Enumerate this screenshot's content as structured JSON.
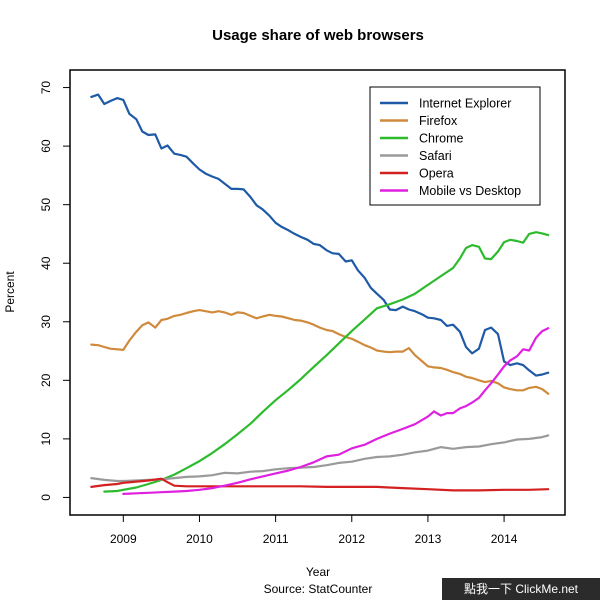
{
  "chart_data": {
    "type": "line",
    "title": "Usage share of web browsers",
    "xlabel": "Year",
    "ylabel": "Percent",
    "source_note": "Source: StatCounter",
    "xlim": [
      2008.3,
      2014.8
    ],
    "ylim": [
      -3,
      73
    ],
    "xticks": [
      2009,
      2010,
      2011,
      2012,
      2013,
      2014
    ],
    "yticks": [
      0,
      10,
      20,
      30,
      40,
      50,
      60,
      70
    ],
    "grid": false,
    "legend_position": "top-right",
    "series": [
      {
        "name": "Internet Explorer",
        "color": "#1f5aa6",
        "x": [
          2008.58,
          2008.67,
          2008.75,
          2008.83,
          2008.92,
          2009.0,
          2009.08,
          2009.17,
          2009.25,
          2009.33,
          2009.42,
          2009.5,
          2009.58,
          2009.67,
          2009.75,
          2009.83,
          2009.92,
          2010.0,
          2010.08,
          2010.17,
          2010.25,
          2010.33,
          2010.42,
          2010.5,
          2010.58,
          2010.67,
          2010.75,
          2010.83,
          2010.92,
          2011.0,
          2011.08,
          2011.17,
          2011.25,
          2011.33,
          2011.42,
          2011.5,
          2011.58,
          2011.67,
          2011.75,
          2011.83,
          2011.92,
          2012.0,
          2012.08,
          2012.17,
          2012.25,
          2012.33,
          2012.42,
          2012.5,
          2012.58,
          2012.67,
          2012.75,
          2012.83,
          2012.92,
          2013.0,
          2013.08,
          2013.17,
          2013.25,
          2013.33,
          2013.42,
          2013.5,
          2013.58,
          2013.67,
          2013.75,
          2013.83,
          2013.92,
          2014.0,
          2014.08,
          2014.17,
          2014.25,
          2014.33,
          2014.42,
          2014.5,
          2014.58
        ],
        "y": [
          68.4,
          68.8,
          67.2,
          67.7,
          68.2,
          67.9,
          65.5,
          64.6,
          62.5,
          61.9,
          62.0,
          59.6,
          60.1,
          58.7,
          58.5,
          58.2,
          57.0,
          56.0,
          55.3,
          54.8,
          54.4,
          53.6,
          52.7,
          52.7,
          52.6,
          51.3,
          49.9,
          49.2,
          48.1,
          46.9,
          46.2,
          45.6,
          45.0,
          44.5,
          44.0,
          43.3,
          43.1,
          42.2,
          41.7,
          41.6,
          40.3,
          40.5,
          38.8,
          37.5,
          35.8,
          34.8,
          33.7,
          32.1,
          32.0,
          32.6,
          32.1,
          31.8,
          31.3,
          30.7,
          30.6,
          30.3,
          29.3,
          29.5,
          28.3,
          25.7,
          24.6,
          25.4,
          28.6,
          29.0,
          27.9,
          23.2,
          22.6,
          22.9,
          22.6,
          21.7,
          20.8,
          21.0,
          21.3
        ]
      },
      {
        "name": "Firefox",
        "color": "#d08a3c",
        "x": [
          2008.58,
          2008.67,
          2008.75,
          2008.83,
          2008.92,
          2009.0,
          2009.08,
          2009.17,
          2009.25,
          2009.33,
          2009.42,
          2009.5,
          2009.58,
          2009.67,
          2009.75,
          2009.83,
          2009.92,
          2010.0,
          2010.08,
          2010.17,
          2010.25,
          2010.33,
          2010.42,
          2010.5,
          2010.58,
          2010.67,
          2010.75,
          2010.83,
          2010.92,
          2011.0,
          2011.08,
          2011.17,
          2011.25,
          2011.33,
          2011.42,
          2011.5,
          2011.58,
          2011.67,
          2011.75,
          2011.83,
          2011.92,
          2012.0,
          2012.08,
          2012.17,
          2012.25,
          2012.33,
          2012.42,
          2012.5,
          2012.58,
          2012.67,
          2012.75,
          2012.83,
          2012.92,
          2013.0,
          2013.08,
          2013.17,
          2013.25,
          2013.33,
          2013.42,
          2013.5,
          2013.58,
          2013.67,
          2013.75,
          2013.83,
          2013.92,
          2014.0,
          2014.08,
          2014.17,
          2014.25,
          2014.33,
          2014.42,
          2014.5,
          2014.58
        ],
        "y": [
          26.1,
          26.0,
          25.7,
          25.4,
          25.3,
          25.2,
          26.8,
          28.3,
          29.4,
          29.9,
          29.0,
          30.3,
          30.5,
          31.0,
          31.2,
          31.5,
          31.8,
          32.0,
          31.8,
          31.6,
          31.8,
          31.6,
          31.2,
          31.6,
          31.5,
          31.0,
          30.6,
          30.9,
          31.2,
          31.0,
          30.9,
          30.6,
          30.3,
          30.2,
          29.9,
          29.5,
          29.0,
          28.6,
          28.4,
          27.9,
          27.4,
          27.1,
          26.6,
          26.0,
          25.6,
          25.1,
          24.9,
          24.8,
          24.9,
          24.9,
          25.5,
          24.3,
          23.3,
          22.4,
          22.2,
          22.1,
          21.8,
          21.4,
          21.1,
          20.6,
          20.4,
          20.0,
          19.7,
          19.9,
          19.5,
          18.8,
          18.5,
          18.3,
          18.3,
          18.7,
          18.9,
          18.5,
          17.7
        ]
      },
      {
        "name": "Chrome",
        "color": "#2dbb2d",
        "x": [
          2008.75,
          2008.92,
          2009.0,
          2009.17,
          2009.33,
          2009.5,
          2009.67,
          2009.83,
          2010.0,
          2010.17,
          2010.33,
          2010.5,
          2010.67,
          2010.83,
          2011.0,
          2011.17,
          2011.33,
          2011.5,
          2011.67,
          2011.83,
          2012.0,
          2012.17,
          2012.33,
          2012.5,
          2012.67,
          2012.83,
          2013.0,
          2013.17,
          2013.33,
          2013.42,
          2013.5,
          2013.58,
          2013.67,
          2013.75,
          2013.83,
          2013.92,
          2014.0,
          2014.08,
          2014.17,
          2014.25,
          2014.33,
          2014.42,
          2014.5,
          2014.58
        ],
        "y": [
          1.0,
          1.1,
          1.3,
          1.7,
          2.3,
          3.0,
          3.9,
          5.0,
          6.2,
          7.6,
          9.1,
          10.8,
          12.6,
          14.6,
          16.6,
          18.4,
          20.2,
          22.3,
          24.3,
          26.3,
          28.4,
          30.4,
          32.3,
          33.0,
          33.8,
          34.8,
          36.3,
          37.8,
          39.2,
          40.8,
          42.6,
          43.1,
          42.8,
          40.8,
          40.7,
          42.0,
          43.6,
          44.0,
          43.8,
          43.5,
          45.0,
          45.3,
          45.1,
          44.8
        ]
      },
      {
        "name": "Safari",
        "color": "#9a9a9a",
        "x": [
          2008.58,
          2008.75,
          2008.92,
          2009.0,
          2009.17,
          2009.33,
          2009.5,
          2009.67,
          2009.83,
          2010.0,
          2010.17,
          2010.33,
          2010.5,
          2010.67,
          2010.83,
          2011.0,
          2011.17,
          2011.33,
          2011.5,
          2011.67,
          2011.83,
          2012.0,
          2012.17,
          2012.33,
          2012.5,
          2012.67,
          2012.83,
          2013.0,
          2013.17,
          2013.33,
          2013.5,
          2013.67,
          2013.83,
          2014.0,
          2014.17,
          2014.33,
          2014.5,
          2014.58
        ],
        "y": [
          3.3,
          3.0,
          2.8,
          2.8,
          2.9,
          3.0,
          3.1,
          3.3,
          3.5,
          3.6,
          3.8,
          4.2,
          4.1,
          4.4,
          4.5,
          4.8,
          5.0,
          5.1,
          5.2,
          5.5,
          5.9,
          6.1,
          6.6,
          6.9,
          7.0,
          7.3,
          7.7,
          8.0,
          8.6,
          8.3,
          8.6,
          8.7,
          9.1,
          9.4,
          9.9,
          10.0,
          10.3,
          10.6
        ]
      },
      {
        "name": "Opera",
        "color": "#d42020",
        "x": [
          2008.58,
          2008.75,
          2008.92,
          2009.0,
          2009.17,
          2009.33,
          2009.5,
          2009.58,
          2009.67,
          2009.83,
          2010.0,
          2010.33,
          2010.67,
          2011.0,
          2011.33,
          2011.67,
          2012.0,
          2012.33,
          2012.67,
          2013.0,
          2013.33,
          2013.67,
          2014.0,
          2014.33,
          2014.58
        ],
        "y": [
          1.8,
          2.1,
          2.3,
          2.5,
          2.7,
          2.9,
          3.2,
          2.6,
          2.0,
          1.9,
          1.9,
          1.9,
          1.9,
          1.9,
          1.9,
          1.8,
          1.8,
          1.8,
          1.6,
          1.4,
          1.2,
          1.2,
          1.3,
          1.3,
          1.4
        ]
      },
      {
        "name": "Mobile vs Desktop",
        "color": "#e020e0",
        "x": [
          2009.0,
          2009.17,
          2009.33,
          2009.5,
          2009.67,
          2009.83,
          2010.0,
          2010.17,
          2010.33,
          2010.5,
          2010.67,
          2010.83,
          2011.0,
          2011.17,
          2011.33,
          2011.5,
          2011.67,
          2011.83,
          2012.0,
          2012.17,
          2012.33,
          2012.5,
          2012.67,
          2012.83,
          2013.0,
          2013.08,
          2013.17,
          2013.25,
          2013.33,
          2013.42,
          2013.5,
          2013.58,
          2013.67,
          2013.75,
          2013.83,
          2013.92,
          2014.0,
          2014.08,
          2014.17,
          2014.25,
          2014.33,
          2014.42,
          2014.5,
          2014.58
        ],
        "y": [
          0.6,
          0.7,
          0.8,
          0.9,
          1.0,
          1.1,
          1.3,
          1.6,
          2.0,
          2.5,
          3.1,
          3.6,
          4.1,
          4.6,
          5.2,
          6.0,
          7.0,
          7.3,
          8.4,
          9.0,
          10.0,
          10.9,
          11.7,
          12.5,
          13.8,
          14.7,
          14.0,
          14.4,
          14.4,
          15.2,
          15.6,
          16.2,
          17.0,
          18.3,
          19.5,
          21.0,
          22.4,
          23.4,
          24.1,
          25.3,
          25.1,
          27.3,
          28.4,
          28.9
        ]
      }
    ]
  },
  "watermark": "點我一下 ClickMe.net"
}
